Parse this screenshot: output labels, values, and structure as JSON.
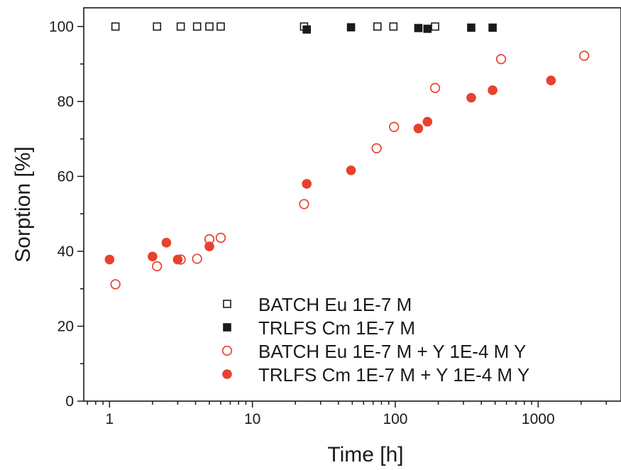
{
  "chart_data": {
    "type": "scatter",
    "title": "",
    "xlabel": "Time [h]",
    "ylabel": "Sorption [%]",
    "xscale": "log",
    "xlim": [
      0.66,
      3800
    ],
    "ylim": [
      0,
      105
    ],
    "x_ticks": [
      1,
      10,
      100,
      1000
    ],
    "x_tick_labels": [
      "1",
      "10",
      "100",
      "1000"
    ],
    "y_ticks": [
      0,
      20,
      40,
      60,
      80,
      100
    ],
    "y_tick_labels": [
      "0",
      "20",
      "40",
      "60",
      "80",
      "100"
    ],
    "grid": false,
    "legend_position": "bottom-right",
    "series": [
      {
        "name": "BATCH Eu 1E-7 M",
        "marker": "square-open",
        "color": "#1a1a1a",
        "points": [
          [
            1.1,
            100
          ],
          [
            2.15,
            100
          ],
          [
            3.15,
            100
          ],
          [
            4.1,
            100
          ],
          [
            5.0,
            100
          ],
          [
            6.0,
            100
          ],
          [
            23,
            100
          ],
          [
            75,
            100
          ],
          [
            97,
            100
          ],
          [
            190,
            100
          ]
        ]
      },
      {
        "name": "TRLFS Cm 1E-7 M",
        "marker": "square-filled",
        "color": "#1a1a1a",
        "points": [
          [
            24,
            99.2
          ],
          [
            49,
            99.8
          ],
          [
            145,
            99.6
          ],
          [
            168,
            99.4
          ],
          [
            340,
            99.7
          ],
          [
            480,
            99.7
          ]
        ]
      },
      {
        "name": "BATCH Eu 1E-7 M + Y 1E-4 M Y",
        "marker": "circle-open",
        "color": "#e8412e",
        "points": [
          [
            1.1,
            31.2
          ],
          [
            2.15,
            36.0
          ],
          [
            3.15,
            37.8
          ],
          [
            4.1,
            38.0
          ],
          [
            5.0,
            43.2
          ],
          [
            6.0,
            43.6
          ],
          [
            23,
            52.6
          ],
          [
            74,
            67.5
          ],
          [
            98,
            73.2
          ],
          [
            190,
            83.6
          ],
          [
            550,
            91.3
          ],
          [
            2100,
            92.2
          ]
        ]
      },
      {
        "name": "TRLFS Cm 1E-7 M + Y 1E-4 M Y",
        "marker": "circle-filled",
        "color": "#e8412e",
        "points": [
          [
            1.0,
            37.8
          ],
          [
            2.0,
            38.6
          ],
          [
            2.5,
            42.3
          ],
          [
            3.0,
            37.8
          ],
          [
            5.0,
            41.3
          ],
          [
            24,
            58.0
          ],
          [
            49,
            61.6
          ],
          [
            145,
            72.8
          ],
          [
            168,
            74.6
          ],
          [
            340,
            81.0
          ],
          [
            480,
            83.0
          ],
          [
            1230,
            85.6
          ]
        ]
      }
    ]
  }
}
